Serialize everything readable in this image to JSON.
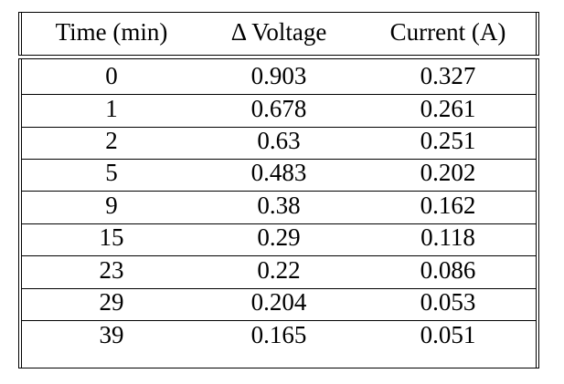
{
  "table": {
    "headers": [
      "Time (min)",
      "Δ Voltage",
      "Current (A)"
    ],
    "rows": [
      [
        "0",
        "0.903",
        "0.327"
      ],
      [
        "1",
        "0.678",
        "0.261"
      ],
      [
        "2",
        "0.63",
        "0.251"
      ],
      [
        "5",
        "0.483",
        "0.202"
      ],
      [
        "9",
        "0.38",
        "0.162"
      ],
      [
        "15",
        "0.29",
        "0.118"
      ],
      [
        "23",
        "0.22",
        "0.086"
      ],
      [
        "29",
        "0.204",
        "0.053"
      ],
      [
        "39",
        "0.165",
        "0.051"
      ]
    ]
  }
}
